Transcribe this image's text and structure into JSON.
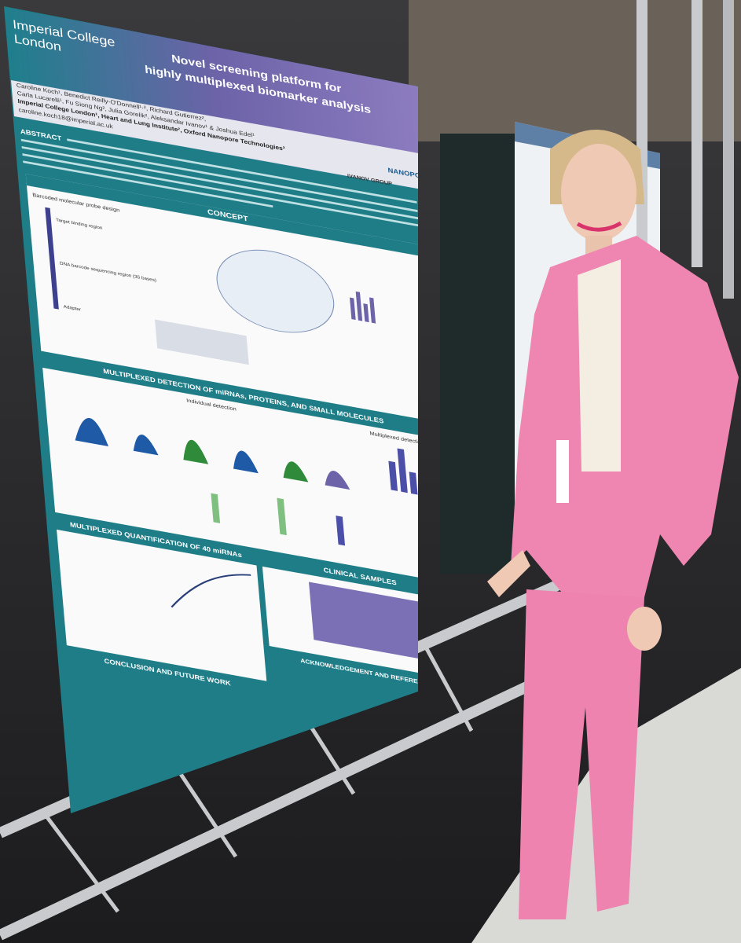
{
  "poster": {
    "institution": [
      "Imperial College",
      "London"
    ],
    "title": [
      "Novel screening platform for",
      "highly multiplexed biomarker analysis"
    ],
    "authors": [
      "Caroline Koch¹, Benedict Reilly-O'Donnell¹·², Richard Gutierrez²,",
      "Carla Lucarelli¹, Fu Siong Ng², Julia Gorelik², Aleksandar Ivanov¹ & Joshua Edel¹",
      "Imperial College London¹, Heart and Lung Institute², Oxford Nanopore Technologies³"
    ],
    "email": "caroline.koch18@imperial.ac.uk",
    "logos": [
      "IVANOV GROUP",
      "NANOPORE"
    ],
    "abstract_label": "ABSTRACT",
    "sections": [
      "CONCEPT",
      "MULTIPLEXED DETECTION OF miRNAs, PROTEINS, AND SMALL MOLECULES",
      "MULTIPLEXED QUANTIFICATION OF 40 miRNAs",
      "CLINICAL SAMPLES",
      "ACKNOWLEDGEMENT AND REFERENCES",
      "CONCLUSION AND FUTURE WORK"
    ],
    "panel_labels": [
      "Barcoded molecular probe design",
      "Target binding region",
      "DNA barcode sequencing region (35 bases)",
      "Adapter",
      "Individual detection",
      "Multiplexed detection"
    ]
  }
}
